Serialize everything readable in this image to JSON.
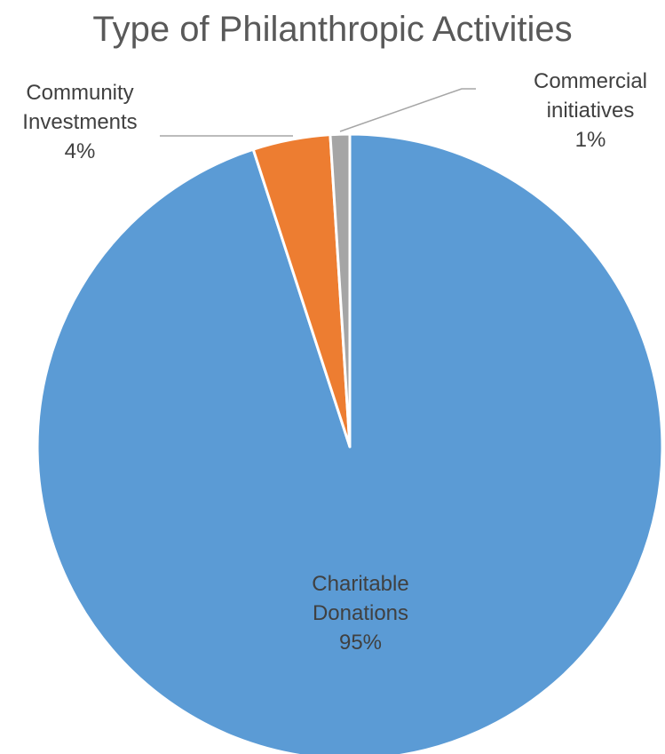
{
  "chart_data": {
    "type": "pie",
    "title": "Type of Philanthropic Activities",
    "slices": [
      {
        "name": "Charitable Donations",
        "label_lines": [
          "Charitable",
          "Donations"
        ],
        "value": 95,
        "value_label": "95%",
        "color": "#5b9bd5"
      },
      {
        "name": "Community Investments",
        "label_lines": [
          "Community",
          "Investments"
        ],
        "value": 4,
        "value_label": "4%",
        "color": "#ed7d31"
      },
      {
        "name": "Commercial initiatives",
        "label_lines": [
          "Commercial",
          "initiatives"
        ],
        "value": 1,
        "value_label": "1%",
        "color": "#a5a5a5"
      }
    ],
    "start_position": "top",
    "direction": "counter-clockwise",
    "legend": "none"
  }
}
